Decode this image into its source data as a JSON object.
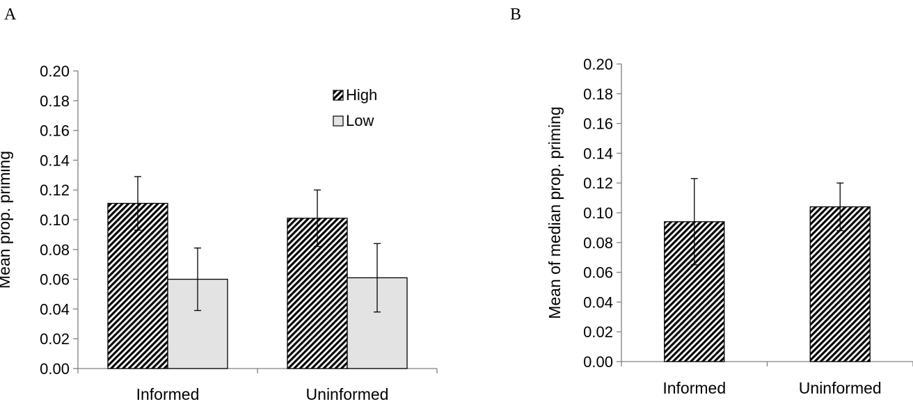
{
  "chart_data": [
    {
      "panel": "A",
      "type": "bar",
      "ylabel": "Mean prop. priming",
      "ylim": [
        0,
        0.2
      ],
      "yticks": [
        "0.00",
        "0.02",
        "0.04",
        "0.06",
        "0.08",
        "0.10",
        "0.12",
        "0.14",
        "0.16",
        "0.18",
        "0.20"
      ],
      "categories": [
        "Informed",
        "Uninformed"
      ],
      "legend_position": "top-right",
      "series": [
        {
          "name": "High",
          "pattern": "diagonal-hatch",
          "color": "#000000",
          "values": [
            0.111,
            0.101
          ],
          "error": [
            0.018,
            0.019
          ]
        },
        {
          "name": "Low",
          "pattern": "solid",
          "color": "#e3e3e3",
          "values": [
            0.06,
            0.061
          ],
          "error": [
            0.021,
            0.023
          ]
        }
      ]
    },
    {
      "panel": "B",
      "type": "bar",
      "ylabel": "Mean of median prop. priming",
      "ylim": [
        0,
        0.2
      ],
      "yticks": [
        "0.00",
        "0.02",
        "0.04",
        "0.06",
        "0.08",
        "0.10",
        "0.12",
        "0.14",
        "0.16",
        "0.18",
        "0.20"
      ],
      "categories": [
        "Informed",
        "Uninformed"
      ],
      "series": [
        {
          "name": "",
          "pattern": "diagonal-hatch",
          "color": "#000000",
          "values": [
            0.094,
            0.104
          ],
          "error": [
            0.029,
            0.016
          ]
        }
      ]
    }
  ]
}
